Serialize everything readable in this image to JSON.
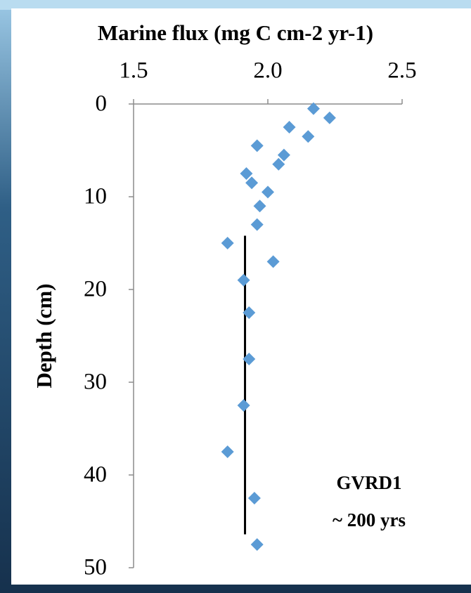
{
  "chart_data": {
    "type": "scatter",
    "title": "Marine flux (mg C cm-2 yr-1)",
    "y_label": "Depth (cm)",
    "annotations": [
      "GVRD1",
      "~ 200 yrs"
    ],
    "color": "#5b9bd5",
    "x": [
      2.17,
      2.23,
      2.08,
      2.15,
      1.96,
      2.06,
      2.04,
      1.92,
      1.94,
      2.0,
      1.97,
      1.96,
      1.85,
      2.02,
      1.91,
      1.93,
      1.93,
      1.91,
      1.85,
      1.95,
      1.96
    ],
    "values": [
      0.5,
      1.5,
      2.5,
      3.5,
      4.5,
      5.5,
      6.5,
      7.5,
      8.5,
      9.5,
      11,
      13,
      15,
      17,
      19,
      22.5,
      27.5,
      32.5,
      37.5,
      42.5,
      47.5
    ],
    "vline": {
      "x": 1.915,
      "y": [
        14.2,
        46.4
      ],
      "color": "#000000"
    },
    "xlim": [
      1.5,
      2.5
    ],
    "xticks": [
      1.5,
      {
        "value": 2,
        "label": "2.0"
      },
      2.5
    ],
    "ylim": [
      0,
      50
    ],
    "yticks": [
      0,
      10,
      20,
      30,
      40,
      50
    ],
    "y_inverted": true,
    "x_axis_position": "top",
    "grid": false
  }
}
